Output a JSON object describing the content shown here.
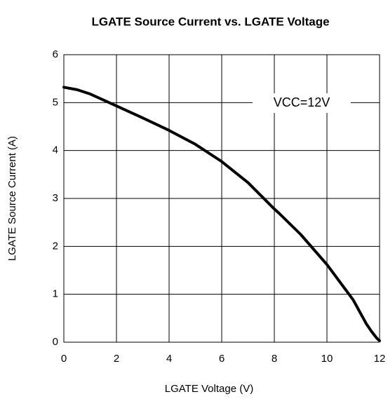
{
  "chart_data": {
    "type": "line",
    "title": "LGATE Source Current vs. LGATE Voltage",
    "x_label": "LGATE Voltage (V)",
    "y_label": "LGATE Source Current (A)",
    "annotation": "VCC=12V",
    "x": [
      0,
      0.5,
      1,
      1.2,
      2,
      3,
      4,
      5,
      6,
      7,
      8,
      8.2,
      9,
      10,
      11,
      11.5,
      11.7,
      11.9,
      12
    ],
    "values": [
      5.32,
      5.27,
      5.18,
      5.13,
      4.93,
      4.68,
      4.42,
      4.13,
      3.77,
      3.33,
      2.78,
      2.68,
      2.25,
      1.62,
      0.88,
      0.38,
      0.22,
      0.08,
      0.03
    ],
    "color": "#000000",
    "xlim": [
      0,
      12
    ],
    "xticks": [
      0,
      2,
      4,
      6,
      8,
      10,
      12
    ],
    "ylim": [
      0,
      6
    ],
    "yticks": [
      0,
      1,
      2,
      3,
      4,
      5,
      6
    ],
    "grid": true
  }
}
